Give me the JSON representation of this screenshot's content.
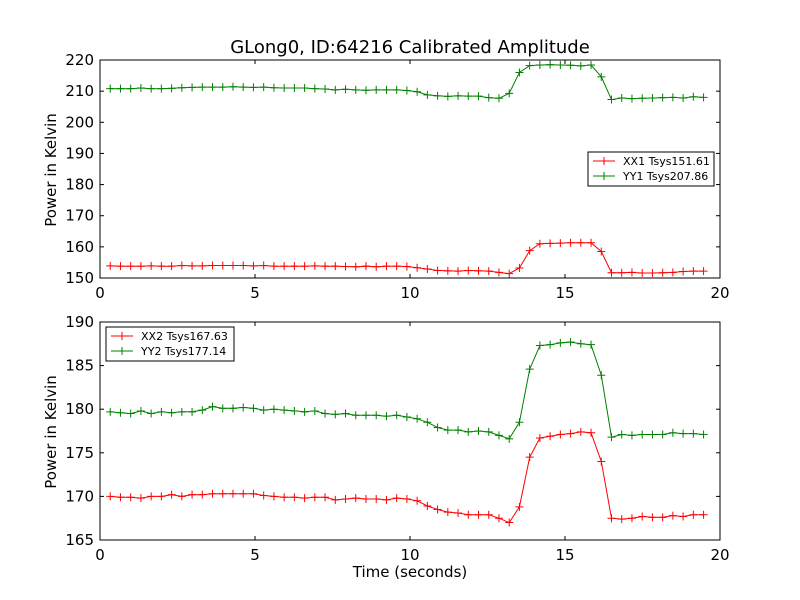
{
  "title": "GLong0, ID:64216 Calibrated Amplitude",
  "colors": {
    "red": "#ff0000",
    "green": "#008000"
  },
  "chart_data": [
    {
      "type": "line",
      "ylabel": "Power in Kelvin",
      "xlabel": "",
      "xlim": [
        0,
        20
      ],
      "ylim": [
        150,
        220
      ],
      "xticks": [
        0,
        5,
        10,
        15,
        20
      ],
      "yticks": [
        150,
        160,
        170,
        180,
        190,
        200,
        210,
        220
      ],
      "grid": false,
      "legend": "right",
      "x": [
        0.33,
        0.66,
        0.99,
        1.32,
        1.65,
        1.98,
        2.31,
        2.64,
        2.97,
        3.3,
        3.63,
        3.96,
        4.29,
        4.62,
        4.95,
        5.28,
        5.61,
        5.94,
        6.27,
        6.6,
        6.93,
        7.26,
        7.59,
        7.92,
        8.25,
        8.58,
        8.91,
        9.24,
        9.57,
        9.9,
        10.23,
        10.56,
        10.89,
        11.22,
        11.55,
        11.88,
        12.21,
        12.54,
        12.87,
        13.2,
        13.53,
        13.86,
        14.19,
        14.52,
        14.85,
        15.18,
        15.51,
        15.84,
        16.17,
        16.5,
        16.83,
        17.16,
        17.49,
        17.82,
        18.15,
        18.48,
        18.81,
        19.14,
        19.47
      ],
      "series": [
        {
          "name": "XX1 Tsys151.61",
          "color": "#ff0000",
          "values": [
            153.9,
            153.8,
            153.8,
            153.8,
            153.9,
            153.8,
            153.8,
            154.0,
            153.9,
            153.9,
            154.0,
            154.0,
            154.0,
            154.0,
            153.9,
            154.0,
            153.8,
            153.8,
            153.8,
            153.8,
            153.9,
            153.8,
            153.8,
            153.7,
            153.6,
            153.8,
            153.6,
            153.8,
            153.8,
            153.7,
            153.3,
            152.9,
            152.4,
            152.3,
            152.2,
            152.4,
            152.3,
            152.2,
            151.8,
            151.4,
            153.2,
            158.8,
            161.0,
            161.1,
            161.2,
            161.3,
            161.3,
            161.3,
            158.5,
            151.7,
            151.7,
            151.8,
            151.6,
            151.6,
            151.7,
            151.8,
            152.1,
            152.2,
            152.2
          ]
        },
        {
          "name": "YY1 Tsys207.86",
          "color": "#008000",
          "values": [
            210.8,
            210.8,
            210.8,
            211.0,
            210.8,
            210.8,
            210.9,
            211.1,
            211.2,
            211.3,
            211.3,
            211.3,
            211.4,
            211.3,
            211.2,
            211.3,
            211.1,
            211.0,
            211.0,
            211.0,
            210.8,
            210.7,
            210.4,
            210.6,
            210.4,
            210.3,
            210.4,
            210.4,
            210.4,
            210.2,
            209.8,
            208.8,
            208.5,
            208.3,
            208.5,
            208.4,
            208.4,
            207.9,
            207.7,
            209.3,
            216.0,
            218.2,
            218.4,
            218.5,
            218.4,
            218.3,
            218.1,
            218.4,
            214.6,
            207.3,
            207.8,
            207.6,
            207.7,
            207.8,
            207.9,
            208.0,
            207.8,
            208.2,
            208.0
          ]
        }
      ]
    },
    {
      "type": "line",
      "ylabel": "Power in Kelvin",
      "xlabel": "Time (seconds)",
      "xlim": [
        0,
        20
      ],
      "ylim": [
        165,
        190
      ],
      "xticks": [
        0,
        5,
        10,
        15,
        20
      ],
      "yticks": [
        165,
        170,
        175,
        180,
        185,
        190
      ],
      "grid": false,
      "legend": "top-left",
      "x": [
        0.33,
        0.66,
        0.99,
        1.32,
        1.65,
        1.98,
        2.31,
        2.64,
        2.97,
        3.3,
        3.63,
        3.96,
        4.29,
        4.62,
        4.95,
        5.28,
        5.61,
        5.94,
        6.27,
        6.6,
        6.93,
        7.26,
        7.59,
        7.92,
        8.25,
        8.58,
        8.91,
        9.24,
        9.57,
        9.9,
        10.23,
        10.56,
        10.89,
        11.22,
        11.55,
        11.88,
        12.21,
        12.54,
        12.87,
        13.2,
        13.53,
        13.86,
        14.19,
        14.52,
        14.85,
        15.18,
        15.51,
        15.84,
        16.17,
        16.5,
        16.83,
        17.16,
        17.49,
        17.82,
        18.15,
        18.48,
        18.81,
        19.14,
        19.47
      ],
      "series": [
        {
          "name": "XX2 Tsys167.63",
          "color": "#ff0000",
          "values": [
            170.0,
            169.9,
            169.9,
            169.8,
            170.0,
            170.0,
            170.2,
            170.0,
            170.2,
            170.2,
            170.3,
            170.3,
            170.3,
            170.3,
            170.3,
            170.1,
            170.0,
            169.9,
            169.9,
            169.8,
            169.9,
            169.9,
            169.6,
            169.7,
            169.8,
            169.7,
            169.7,
            169.6,
            169.8,
            169.7,
            169.5,
            168.9,
            168.5,
            168.2,
            168.1,
            167.9,
            167.9,
            167.9,
            167.5,
            167.0,
            168.8,
            174.5,
            176.7,
            176.9,
            177.1,
            177.2,
            177.4,
            177.3,
            174.0,
            167.5,
            167.4,
            167.5,
            167.7,
            167.6,
            167.6,
            167.8,
            167.7,
            167.9,
            167.9
          ]
        },
        {
          "name": "YY2 Tsys177.14",
          "color": "#008000",
          "values": [
            179.7,
            179.6,
            179.5,
            179.8,
            179.5,
            179.7,
            179.6,
            179.7,
            179.7,
            179.9,
            180.3,
            180.1,
            180.1,
            180.2,
            180.1,
            179.9,
            180.0,
            179.9,
            179.8,
            179.7,
            179.8,
            179.5,
            179.4,
            179.5,
            179.3,
            179.3,
            179.3,
            179.2,
            179.3,
            179.1,
            178.9,
            178.5,
            177.9,
            177.6,
            177.6,
            177.4,
            177.5,
            177.4,
            177.0,
            176.6,
            178.5,
            184.6,
            187.3,
            187.4,
            187.6,
            187.7,
            187.5,
            187.4,
            183.9,
            176.8,
            177.1,
            177.0,
            177.1,
            177.1,
            177.1,
            177.3,
            177.2,
            177.2,
            177.1
          ]
        }
      ]
    }
  ]
}
